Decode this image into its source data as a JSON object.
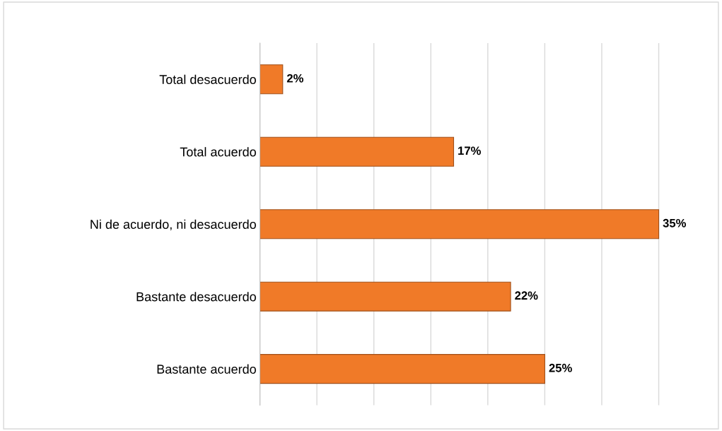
{
  "chart_data": {
    "type": "bar",
    "orientation": "horizontal",
    "categories": [
      "Total desacuerdo",
      "Total acuerdo",
      "Ni de acuerdo, ni desacuerdo",
      "Bastante desacuerdo",
      "Bastante acuerdo"
    ],
    "values": [
      2,
      17,
      35,
      22,
      25
    ],
    "value_labels": [
      "2%",
      "17%",
      "35%",
      "22%",
      "25%"
    ],
    "color": "#f07a28",
    "xticks": [
      {
        "value": 0,
        "label": null
      },
      {
        "value": 5,
        "label": null
      },
      {
        "value": 10,
        "label": null
      },
      {
        "value": 15,
        "label": null
      },
      {
        "value": 20,
        "label": null
      },
      {
        "value": 25,
        "label": null
      },
      {
        "value": 30,
        "label": null
      },
      {
        "value": 35,
        "label": null
      }
    ],
    "grid": "x",
    "legend": false
  }
}
